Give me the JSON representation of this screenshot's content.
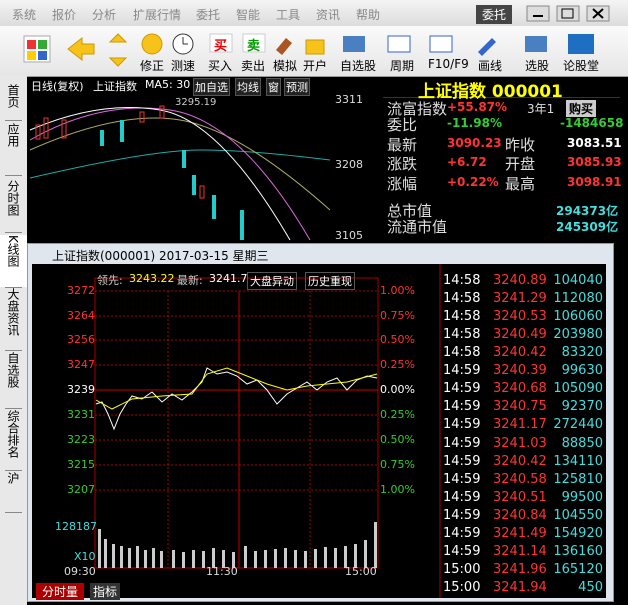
{
  "menu": [
    "系统",
    "报价",
    "分析",
    "扩展行情",
    "委托",
    "智能",
    "工具",
    "资讯",
    "帮助"
  ],
  "menu_right": "委托",
  "toolbar_icons": [
    "买",
    "卖"
  ],
  "toolbar": [
    "修正",
    "测速",
    "买入",
    "卖出",
    "模拟",
    "开户",
    "自选股",
    "周期",
    "F10/F9",
    "画线",
    "选股",
    "论股堂"
  ],
  "side_tabs": [
    "首页",
    "应用",
    "分时图",
    "K线图",
    "大盘资讯",
    "自选股",
    "综合排名",
    "沪"
  ],
  "kline": {
    "header": [
      "日线(复权)",
      "上证指数",
      "MA5: 30",
      "加自选",
      "均线",
      "窗",
      "预测"
    ],
    "high_mark": "3295.19",
    "price_labels": [
      "3311",
      "3208",
      "3105"
    ]
  },
  "quote": {
    "title": "上证指数 000001",
    "rows": [
      {
        "label": "流富指数",
        "value": "+55.87%",
        "label2": "3年1",
        "value2": "购买"
      },
      {
        "label": "委比",
        "value": "-11.98%",
        "value2": "-1484658"
      },
      {
        "label": "最新",
        "value": "3090.23",
        "label2": "昨收",
        "value2": "3083.51"
      },
      {
        "label": "涨跌",
        "value": "+6.72",
        "label2": "开盘",
        "value2": "3085.93"
      },
      {
        "label": "涨幅",
        "value": "+0.22%",
        "label2": "最高",
        "value2": "3098.91"
      },
      {
        "label": "总市值",
        "value2": "294373亿"
      },
      {
        "label": "流通市值",
        "value2": "245309亿"
      }
    ]
  },
  "popup": {
    "title": "上证指数(000001) 2017-03-15 星期三",
    "header": {
      "lead_label": "领先:",
      "lead": "3243.22",
      "last_label": "最新:",
      "last": "3241.7",
      "buttons": [
        "大盘异动",
        "历史重现"
      ]
    },
    "price_ticks": [
      "3272",
      "3264",
      "3256",
      "3247",
      "3239",
      "3231",
      "3223",
      "3215",
      "3207"
    ],
    "pct_ticks": [
      "1.00%",
      "0.75%",
      "0.50%",
      "0.25%",
      "0.00%",
      "0.25%",
      "0.50%",
      "0.75%",
      "1.00%"
    ],
    "volume_max": "128187",
    "volume_unit": "X10",
    "times": [
      "09:30",
      "11:30",
      "15:00"
    ],
    "tabs": [
      "分时量",
      "指标"
    ],
    "ticks": [
      {
        "time": "14:58",
        "price": "3240.89",
        "volume": "104040"
      },
      {
        "time": "14:58",
        "price": "3241.29",
        "volume": "112080"
      },
      {
        "time": "14:58",
        "price": "3240.53",
        "volume": "106060"
      },
      {
        "time": "14:58",
        "price": "3240.49",
        "volume": "203980"
      },
      {
        "time": "14:58",
        "price": "3240.42",
        "volume": "83320"
      },
      {
        "time": "14:59",
        "price": "3240.39",
        "volume": "99630"
      },
      {
        "time": "14:59",
        "price": "3240.68",
        "volume": "105090"
      },
      {
        "time": "14:59",
        "price": "3240.75",
        "volume": "92370"
      },
      {
        "time": "14:59",
        "price": "3241.17",
        "volume": "272440"
      },
      {
        "time": "14:59",
        "price": "3241.03",
        "volume": "88850"
      },
      {
        "time": "14:59",
        "price": "3240.42",
        "volume": "134110"
      },
      {
        "time": "14:59",
        "price": "3240.58",
        "volume": "125810"
      },
      {
        "time": "14:59",
        "price": "3240.51",
        "volume": "99500"
      },
      {
        "time": "14:59",
        "price": "3240.84",
        "volume": "104550"
      },
      {
        "time": "14:59",
        "price": "3241.49",
        "volume": "154920"
      },
      {
        "time": "14:59",
        "price": "3241.14",
        "volume": "136160"
      },
      {
        "time": "15:00",
        "price": "3241.96",
        "volume": "165120"
      },
      {
        "time": "15:00",
        "price": "3241.94",
        "volume": "450"
      }
    ]
  }
}
